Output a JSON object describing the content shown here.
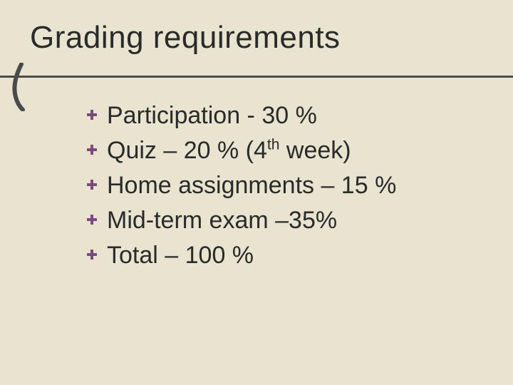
{
  "slide": {
    "title": "Grading requirements",
    "background_color": "#e8e4d0",
    "text_color": "#2a2a2a",
    "underline_color": "#4a4a4a",
    "accent_stroke_color": "#4a4a4a",
    "bullet_color": "#7a4a7a",
    "title_fontsize": 44,
    "item_fontsize": 34,
    "font_family": "Comic Sans MS",
    "items": [
      {
        "text": "Participation - 30 %"
      },
      {
        "text_html": "Quiz – 20 % (4<sup>th</sup> week)",
        "text": "Quiz – 20 % (4th week)"
      },
      {
        "text": "Home assignments – 15 %"
      },
      {
        "text": "Mid-term exam –35%"
      },
      {
        "text": "Total – 100 %"
      }
    ]
  }
}
